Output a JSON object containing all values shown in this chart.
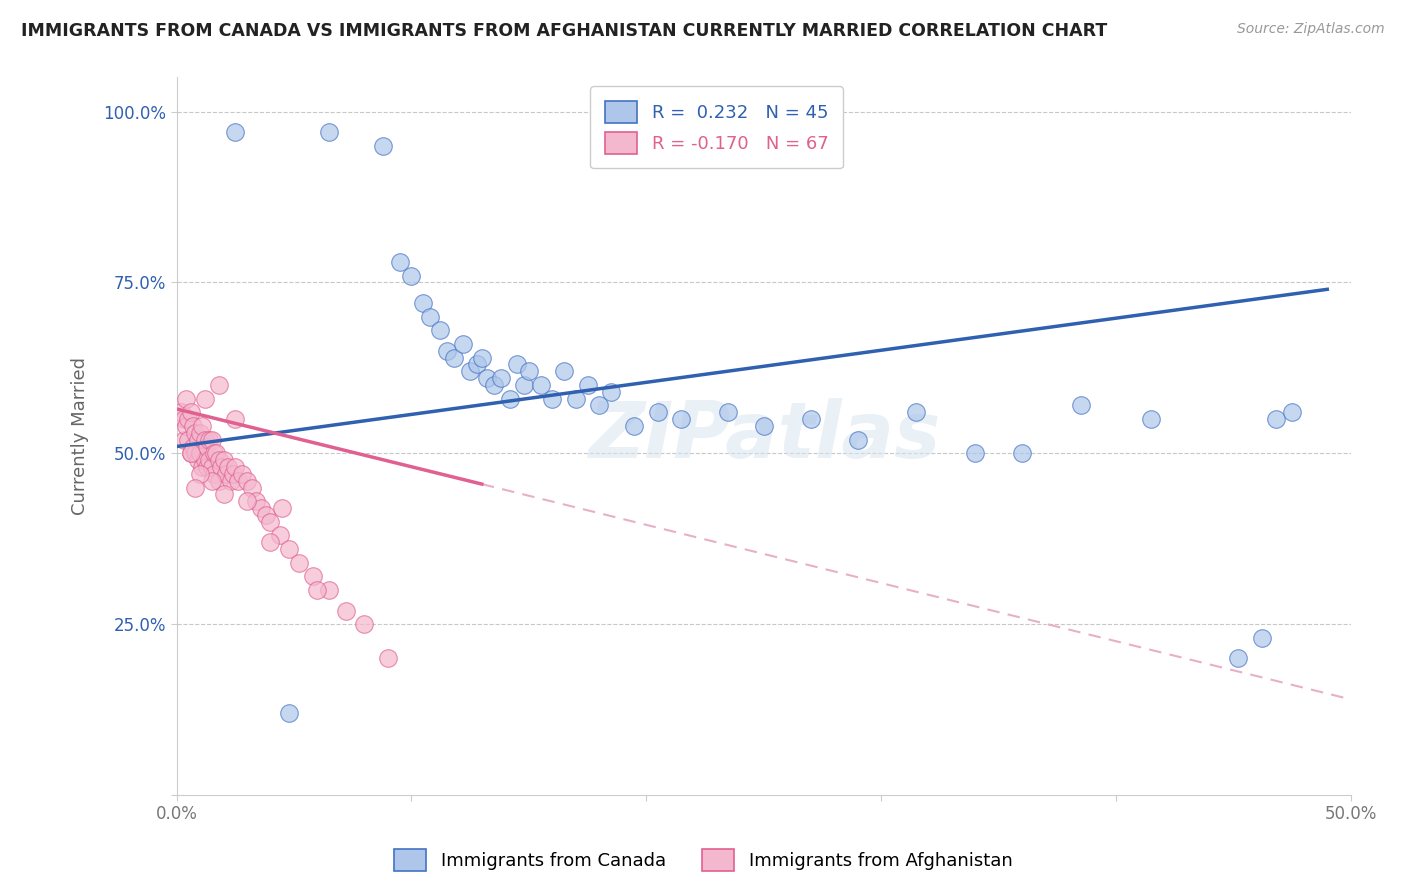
{
  "title": "IMMIGRANTS FROM CANADA VS IMMIGRANTS FROM AFGHANISTAN CURRENTLY MARRIED CORRELATION CHART",
  "source": "Source: ZipAtlas.com",
  "ylabel": "Currently Married",
  "xaxis_label_canada": "Immigrants from Canada",
  "xaxis_label_afghanistan": "Immigrants from Afghanistan",
  "xlim": [
    0.0,
    0.5
  ],
  "ylim": [
    0.0,
    1.05
  ],
  "legend_r_canada": "0.232",
  "legend_n_canada": "45",
  "legend_r_afghanistan": "-0.170",
  "legend_n_afghanistan": "67",
  "canada_color": "#aec6ea",
  "canada_edge_color": "#4472c4",
  "afghanistan_color": "#f4b8ce",
  "afghanistan_edge_color": "#e06090",
  "trendline_canada_color": "#3060b0",
  "trendline_afghanistan_color": "#e06090",
  "trendline_dashed_color": "#e8b0c8",
  "canada_scatter_x": [
    0.025,
    0.048,
    0.065,
    0.088,
    0.095,
    0.1,
    0.105,
    0.108,
    0.112,
    0.115,
    0.118,
    0.122,
    0.125,
    0.128,
    0.13,
    0.132,
    0.135,
    0.138,
    0.142,
    0.145,
    0.148,
    0.15,
    0.155,
    0.16,
    0.165,
    0.17,
    0.175,
    0.18,
    0.185,
    0.195,
    0.205,
    0.215,
    0.235,
    0.25,
    0.27,
    0.29,
    0.315,
    0.34,
    0.36,
    0.385,
    0.415,
    0.452,
    0.462,
    0.468,
    0.475
  ],
  "canada_scatter_y": [
    0.97,
    0.12,
    0.97,
    0.95,
    0.78,
    0.76,
    0.72,
    0.7,
    0.68,
    0.65,
    0.64,
    0.66,
    0.62,
    0.63,
    0.64,
    0.61,
    0.6,
    0.61,
    0.58,
    0.63,
    0.6,
    0.62,
    0.6,
    0.58,
    0.62,
    0.58,
    0.6,
    0.57,
    0.59,
    0.54,
    0.56,
    0.55,
    0.56,
    0.54,
    0.55,
    0.52,
    0.56,
    0.5,
    0.5,
    0.57,
    0.55,
    0.2,
    0.23,
    0.55,
    0.56
  ],
  "afghanistan_scatter_x": [
    0.002,
    0.003,
    0.003,
    0.004,
    0.004,
    0.005,
    0.005,
    0.006,
    0.006,
    0.007,
    0.007,
    0.008,
    0.008,
    0.009,
    0.009,
    0.01,
    0.01,
    0.011,
    0.011,
    0.012,
    0.012,
    0.013,
    0.013,
    0.014,
    0.014,
    0.015,
    0.015,
    0.016,
    0.016,
    0.017,
    0.018,
    0.018,
    0.019,
    0.02,
    0.021,
    0.022,
    0.023,
    0.024,
    0.025,
    0.026,
    0.028,
    0.03,
    0.032,
    0.034,
    0.036,
    0.038,
    0.04,
    0.044,
    0.048,
    0.052,
    0.058,
    0.065,
    0.072,
    0.08,
    0.09,
    0.045,
    0.02,
    0.015,
    0.01,
    0.008,
    0.006,
    0.012,
    0.018,
    0.025,
    0.03,
    0.04,
    0.06
  ],
  "afghanistan_scatter_y": [
    0.56,
    0.55,
    0.52,
    0.58,
    0.54,
    0.55,
    0.52,
    0.56,
    0.5,
    0.54,
    0.51,
    0.53,
    0.5,
    0.52,
    0.49,
    0.53,
    0.5,
    0.54,
    0.48,
    0.52,
    0.49,
    0.51,
    0.48,
    0.52,
    0.49,
    0.52,
    0.48,
    0.5,
    0.47,
    0.5,
    0.49,
    0.46,
    0.48,
    0.49,
    0.47,
    0.48,
    0.46,
    0.47,
    0.48,
    0.46,
    0.47,
    0.46,
    0.45,
    0.43,
    0.42,
    0.41,
    0.4,
    0.38,
    0.36,
    0.34,
    0.32,
    0.3,
    0.27,
    0.25,
    0.2,
    0.42,
    0.44,
    0.46,
    0.47,
    0.45,
    0.5,
    0.58,
    0.6,
    0.55,
    0.43,
    0.37,
    0.3
  ],
  "trendline_canada_x0": 0.0,
  "trendline_canada_y0": 0.51,
  "trendline_canada_x1": 0.49,
  "trendline_canada_y1": 0.74,
  "trendline_afg_solid_x0": 0.0,
  "trendline_afg_solid_y0": 0.565,
  "trendline_afg_solid_x1": 0.13,
  "trendline_afg_solid_y1": 0.455,
  "trendline_afg_dash_x0": 0.13,
  "trendline_afg_dash_y0": 0.455,
  "trendline_afg_dash_x1": 0.5,
  "trendline_afg_dash_y1": 0.14,
  "watermark": "ZIPatlas",
  "background_color": "#ffffff",
  "grid_color": "#c8c8c8"
}
